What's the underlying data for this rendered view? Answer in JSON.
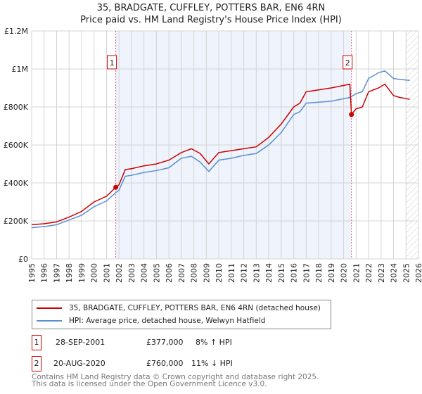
{
  "chart_data": {
    "type": "line",
    "title": "35, BRADGATE, CUFFLEY, POTTERS BAR, EN6 4RN",
    "subtitle": "Price paid vs. HM Land Registry's House Price Index (HPI)",
    "xlim": [
      1995,
      2026
    ],
    "ylim": [
      0,
      1200000
    ],
    "x_ticks": [
      "1995",
      "1996",
      "1997",
      "1998",
      "1999",
      "2000",
      "2001",
      "2002",
      "2003",
      "2004",
      "2005",
      "2006",
      "2007",
      "2008",
      "2009",
      "2010",
      "2011",
      "2012",
      "2013",
      "2014",
      "2015",
      "2016",
      "2017",
      "2018",
      "2019",
      "2020",
      "2021",
      "2022",
      "2023",
      "2024",
      "2025",
      "2026"
    ],
    "y_ticks": [
      {
        "v": 0,
        "label": "£0"
      },
      {
        "v": 200000,
        "label": "£200K"
      },
      {
        "v": 400000,
        "label": "£400K"
      },
      {
        "v": 600000,
        "label": "£600K"
      },
      {
        "v": 800000,
        "label": "£800K"
      },
      {
        "v": 1000000,
        "label": "£1M"
      },
      {
        "v": 1200000,
        "label": "£1.2M"
      }
    ],
    "grid": true,
    "shaded_range": [
      2001.74,
      2020.63
    ],
    "forecast_from": 2025.0,
    "series": [
      {
        "name": "35, BRADGATE, CUFFLEY, POTTERS BAR, EN6 4RN (detached house)",
        "color": "#cc0000",
        "x": [
          1995,
          1996,
          1997,
          1998,
          1999,
          2000,
          2001,
          2001.74,
          2002,
          2002.5,
          2003,
          2004,
          2005,
          2006,
          2007,
          2007.8,
          2008.5,
          2009.2,
          2010,
          2011,
          2012,
          2013,
          2014,
          2015,
          2016,
          2016.5,
          2017,
          2018,
          2019,
          2020.5,
          2020.63,
          2021,
          2021.5,
          2022,
          2022.8,
          2023.3,
          2024,
          2024.5,
          2025.3
        ],
        "y": [
          180000,
          185000,
          195000,
          220000,
          250000,
          300000,
          330000,
          377000,
          390000,
          470000,
          475000,
          490000,
          500000,
          520000,
          560000,
          580000,
          555000,
          500000,
          560000,
          570000,
          580000,
          590000,
          640000,
          710000,
          800000,
          820000,
          880000,
          890000,
          900000,
          920000,
          760000,
          790000,
          800000,
          880000,
          900000,
          920000,
          860000,
          850000,
          840000
        ]
      },
      {
        "name": "HPI: Average price, detached house, Welwyn Hatfield",
        "color": "#5b8fd0",
        "x": [
          1995,
          1996,
          1997,
          1998,
          1999,
          2000,
          2001,
          2001.74,
          2002,
          2002.5,
          2003,
          2004,
          2005,
          2006,
          2007,
          2007.8,
          2008.5,
          2009.2,
          2010,
          2011,
          2012,
          2013,
          2014,
          2015,
          2016,
          2016.5,
          2017,
          2018,
          2019,
          2020.5,
          2020.63,
          2021,
          2021.5,
          2022,
          2022.8,
          2023.3,
          2024,
          2024.5,
          2025.3
        ],
        "y": [
          165000,
          170000,
          180000,
          205000,
          230000,
          275000,
          305000,
          349000,
          362000,
          435000,
          440000,
          455000,
          465000,
          480000,
          530000,
          540000,
          510000,
          460000,
          520000,
          530000,
          545000,
          555000,
          600000,
          665000,
          760000,
          775000,
          820000,
          825000,
          830000,
          850000,
          855000,
          870000,
          880000,
          950000,
          980000,
          990000,
          950000,
          945000,
          940000
        ]
      }
    ],
    "annotations": [
      {
        "label": "1",
        "x": 2001.74
      },
      {
        "label": "2",
        "x": 2020.63
      }
    ]
  },
  "legend": {
    "red": "35, BRADGATE, CUFFLEY, POTTERS BAR, EN6 4RN (detached house)",
    "blue": "HPI: Average price, detached house, Welwyn Hatfield"
  },
  "sales": [
    {
      "num": "1",
      "date": "28-SEP-2001",
      "price": "£377,000",
      "hpi": "8% ↑ HPI"
    },
    {
      "num": "2",
      "date": "20-AUG-2020",
      "price": "£760,000",
      "hpi": "11% ↓ HPI"
    }
  ],
  "footer": {
    "line1": "Contains HM Land Registry data © Crown copyright and database right 2025.",
    "line2": "This data is licensed under the Open Government Licence v3.0."
  }
}
